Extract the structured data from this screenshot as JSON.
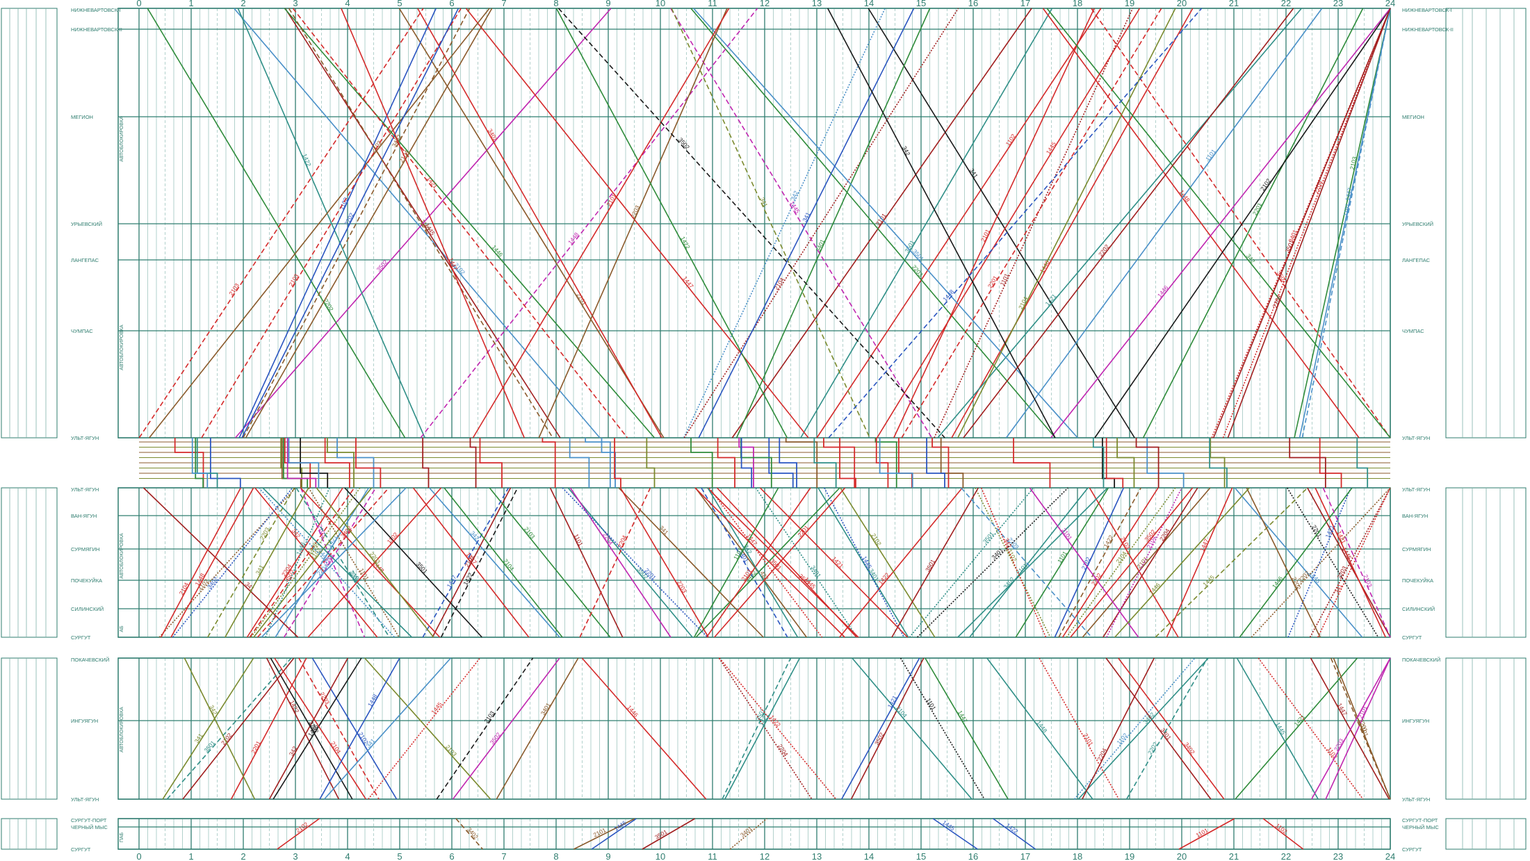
{
  "hours": [
    "0",
    "1",
    "2",
    "3",
    "4",
    "5",
    "6",
    "7",
    "8",
    "9",
    "10",
    "11",
    "12",
    "13",
    "14",
    "15",
    "16",
    "17",
    "18",
    "19",
    "20",
    "21",
    "22",
    "23",
    "24"
  ],
  "colors": {
    "grid": "#2f7d6f",
    "grid_light": "#7fb3aa",
    "red": "#d42a2a",
    "dark_red": "#a11f1f",
    "blue": "#2a55c0",
    "light_blue": "#4a90c8",
    "green": "#2e8b3a",
    "olive": "#7a8a2e",
    "black": "#1a1a1a",
    "brown": "#8a5a2b",
    "magenta": "#c026b0",
    "teal": "#2f8f87"
  },
  "vertical_labels": [
    "АВТОБЛОКИРОВКА",
    "АВТОБЛОКИРОВКА",
    "АВТОБЛОКИРОВКА",
    "АВТОБЛОКИРОВКА",
    "АБ",
    "ПАБ"
  ],
  "sections": [
    {
      "id": "s1",
      "stations": [
        {
          "name": "НИЖНЕВАРТОВСК-I",
          "right": "НИЖНЕВАРТОВСК-I"
        },
        {
          "name": "НИЖНЕВАРТОВСК-II",
          "right": "НИЖНЕВАРТОВСК-II"
        },
        {
          "name": "МЕГИОН",
          "right": "МЕГИОН"
        },
        {
          "name": "УРЬЕВСКИЙ",
          "right": "УРЬЕВСКИЙ"
        },
        {
          "name": "ЛАНГЕПАС",
          "right": "ЛАНГЕПАС"
        },
        {
          "name": "ЧУМПАС",
          "right": "ЧУМПАС"
        },
        {
          "name": "УЛЬТ-ЯГУН",
          "right": "УЛЬТ-ЯГУН"
        }
      ]
    },
    {
      "id": "s2",
      "stations": [
        {
          "name": "УЛЬТ-ЯГУН",
          "right": "УЛЬТ-ЯГУН"
        },
        {
          "name": "ВАН-ЯГУН",
          "right": "ВАН-ЯГУН"
        },
        {
          "name": "СУРМЯГИН",
          "right": "СУРМЯГИН"
        },
        {
          "name": "ПОЧЕКУЙКА",
          "right": "ПОЧЕКУЙКА"
        },
        {
          "name": "СИЛИНСКИЙ",
          "right": "СИЛИНСКИЙ"
        },
        {
          "name": "СУРГУТ",
          "right": "СУРГУТ"
        }
      ]
    },
    {
      "id": "s3",
      "stations": [
        {
          "name": "ПОКАЧЕВСКИЙ",
          "right": "ПОКАЧЕВСКИЙ"
        },
        {
          "name": "ИНГУЯГУН",
          "right": "ИНГУЯГУН"
        },
        {
          "name": "УЛЬТ-ЯГУН",
          "right": "УЛЬТ-ЯГУН"
        }
      ]
    },
    {
      "id": "s4",
      "stations": [
        {
          "name": "СУРГУТ-ПОРТ",
          "right": "СУРГУТ-ПОРТ"
        },
        {
          "name": "ЧЕРНЫЙ МЫС",
          "right": "ЧЕРНЫЙ МЫС"
        },
        {
          "name": "СУРГУТ",
          "right": "СУРГУТ"
        }
      ]
    }
  ],
  "train_labels": [
    "2101",
    "2102",
    "1101",
    "1102",
    "1445",
    "1446",
    "3501",
    "3502",
    "341",
    "342",
    "2103",
    "2104",
    "1447",
    "1448",
    "2201",
    "2202",
    "2203",
    "2204",
    "1421",
    "1422",
    "3401",
    "3402"
  ]
}
